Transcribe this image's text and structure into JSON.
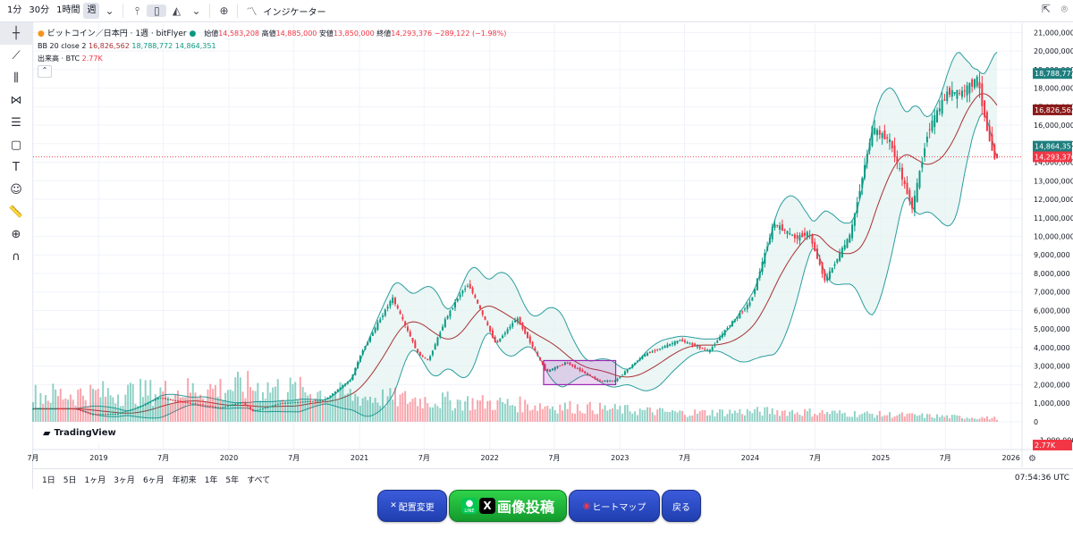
{
  "toolbar": {
    "timeframes": [
      "1分",
      "30分",
      "1時間",
      "週"
    ],
    "active_timeframe": 3,
    "indicator_label": "インジケーター"
  },
  "legend": {
    "title": "ビットコイン／日本円 · 1週 · bitFlyer",
    "open_label": "始値",
    "open": "14,583,208",
    "high_label": "高値",
    "high": "14,885,000",
    "low_label": "安値",
    "low": "13,850,000",
    "close_label": "終値",
    "close": "14,293,376",
    "change": "−289,122 (−1.98%)",
    "bb_label": "BB 20 close 2",
    "bb_basis": "16,826,562",
    "bb_upper": "18,788,772",
    "bb_lower": "14,864,351",
    "vol_label": "出来高 · BTC",
    "vol_value": "2.77K"
  },
  "watermark": "TradingView",
  "bottom": {
    "ranges": [
      "1日",
      "5日",
      "1ヶ月",
      "3ヶ月",
      "6ヶ月",
      "年初来",
      "1年",
      "5年",
      "すべて"
    ],
    "clock": "07:54:36 UTC"
  },
  "buttons": {
    "layout": "配置変更",
    "post": "画像投稿",
    "line": "LINE",
    "x": "X",
    "heatmap": "ヒートマップ",
    "back": "戻る"
  },
  "colors": {
    "up": "#089981",
    "down": "#f23645",
    "bb": "#2a9d9d",
    "basis": "#a83232",
    "box": "#9c27b0"
  },
  "chart_data": {
    "type": "candlestick",
    "symbol": "ビットコイン／日本円",
    "interval": "1週",
    "ylim": [
      -1500000,
      21500000
    ],
    "yticks": [
      -1000000,
      0,
      1000000,
      2000000,
      3000000,
      4000000,
      5000000,
      6000000,
      7000000,
      8000000,
      9000000,
      10000000,
      11000000,
      12000000,
      13000000,
      14000000,
      15000000,
      16000000,
      17000000,
      18000000,
      19000000,
      20000000,
      21000000
    ],
    "ytick_labels": [
      "−1,000,000",
      "0",
      "1,000,000",
      "2,000,000",
      "3,000,000",
      "4,000,000",
      "5,000,000",
      "6,000,000",
      "7,000,000",
      "8,000,000",
      "9,000,000",
      "10,000,000",
      "11,000,000",
      "12,000,000",
      "13,000,000",
      "14,000,000",
      "15,000,000",
      "16,000,000",
      "17,000,000",
      "18,000,000",
      "19,000,000",
      "20,000,000",
      "21,000,000"
    ],
    "xlim": [
      "2018-07-01",
      "2026-02-01"
    ],
    "xticks": [
      {
        "label": "7月",
        "date": "2018-07-01"
      },
      {
        "label": "2019",
        "date": "2019-01-01"
      },
      {
        "label": "7月",
        "date": "2019-07-01"
      },
      {
        "label": "2020",
        "date": "2020-01-01"
      },
      {
        "label": "7月",
        "date": "2020-07-01"
      },
      {
        "label": "2021",
        "date": "2021-01-01"
      },
      {
        "label": "7月",
        "date": "2021-07-01"
      },
      {
        "label": "2022",
        "date": "2022-01-01"
      },
      {
        "label": "7月",
        "date": "2022-07-01"
      },
      {
        "label": "2023",
        "date": "2023-01-01"
      },
      {
        "label": "7月",
        "date": "2023-07-01"
      },
      {
        "label": "2024",
        "date": "2024-01-01"
      },
      {
        "label": "7月",
        "date": "2024-07-01"
      },
      {
        "label": "2025",
        "date": "2025-01-01"
      },
      {
        "label": "7月",
        "date": "2025-07-01"
      },
      {
        "label": "2026",
        "date": "2026-01-01"
      }
    ],
    "price_path": [
      [
        "2018-07-01",
        700000
      ],
      [
        "2018-11-01",
        700000
      ],
      [
        "2018-12-15",
        400000
      ],
      [
        "2019-03-01",
        430000
      ],
      [
        "2019-05-01",
        800000
      ],
      [
        "2019-06-25",
        1300000
      ],
      [
        "2019-09-01",
        1050000
      ],
      [
        "2019-12-15",
        760000
      ],
      [
        "2020-02-15",
        1050000
      ],
      [
        "2020-03-15",
        560000
      ],
      [
        "2020-06-01",
        1000000
      ],
      [
        "2020-10-01",
        1150000
      ],
      [
        "2020-12-15",
        2300000
      ],
      [
        "2021-01-15",
        3800000
      ],
      [
        "2021-04-10",
        6700000
      ],
      [
        "2021-06-20",
        3700000
      ],
      [
        "2021-07-20",
        3300000
      ],
      [
        "2021-09-05",
        5500000
      ],
      [
        "2021-10-20",
        7000000
      ],
      [
        "2021-11-10",
        7400000
      ],
      [
        "2022-01-25",
        4200000
      ],
      [
        "2022-03-25",
        5600000
      ],
      [
        "2022-06-15",
        2700000
      ],
      [
        "2022-08-10",
        3200000
      ],
      [
        "2022-11-10",
        2200000
      ],
      [
        "2022-12-25",
        2200000
      ],
      [
        "2023-03-15",
        3600000
      ],
      [
        "2023-06-25",
        4400000
      ],
      [
        "2023-09-15",
        3800000
      ],
      [
        "2023-11-01",
        5000000
      ],
      [
        "2024-01-10",
        6500000
      ],
      [
        "2024-03-14",
        10700000
      ],
      [
        "2024-05-15",
        9900000
      ],
      [
        "2024-06-20",
        10200000
      ],
      [
        "2024-08-05",
        7600000
      ],
      [
        "2024-10-15",
        10100000
      ],
      [
        "2024-12-15",
        15800000
      ],
      [
        "2025-02-01",
        15200000
      ],
      [
        "2025-04-07",
        11500000
      ],
      [
        "2025-05-20",
        15700000
      ],
      [
        "2025-07-15",
        17800000
      ],
      [
        "2025-08-20",
        17700000
      ],
      [
        "2025-10-06",
        18500000
      ],
      [
        "2025-11-05",
        15500000
      ],
      [
        "2025-11-23",
        14293376
      ]
    ],
    "volume_path": [
      [
        "2018-07-01",
        1500000
      ],
      [
        "2019-06-25",
        1700000
      ],
      [
        "2020-03-15",
        2000000
      ],
      [
        "2021-01-15",
        1400000
      ],
      [
        "2022-06-15",
        900000
      ],
      [
        "2023-06-25",
        500000
      ],
      [
        "2024-03-14",
        600000
      ],
      [
        "2025-11-23",
        200000
      ]
    ],
    "last_values": {
      "close": 14293376,
      "bb_basis": 16826562,
      "bb_upper": 18788772,
      "bb_lower": 14864351,
      "volume": "2.77K"
    },
    "annotation": {
      "type": "rectangle",
      "x": [
        "2022-06-01",
        "2022-12-20"
      ],
      "y": [
        2000000,
        3300000
      ]
    }
  }
}
